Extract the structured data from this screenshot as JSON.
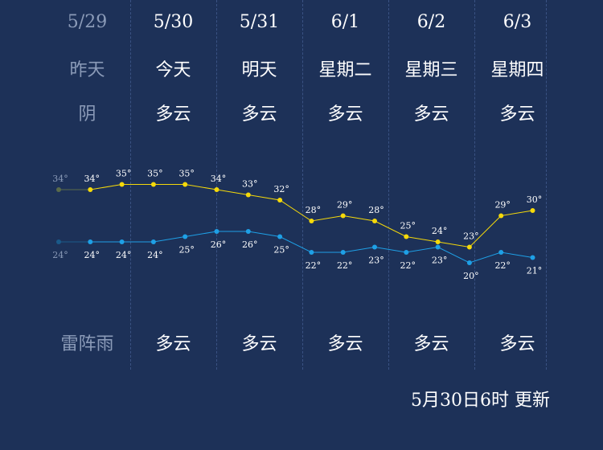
{
  "days": [
    {
      "date": "5/29",
      "weekday": "昨天",
      "day_weather": "阴",
      "night_weather": "雷阵雨",
      "past": true
    },
    {
      "date": "5/30",
      "weekday": "今天",
      "day_weather": "多云",
      "night_weather": "多云",
      "past": false
    },
    {
      "date": "5/31",
      "weekday": "明天",
      "day_weather": "多云",
      "night_weather": "多云",
      "past": false
    },
    {
      "date": "6/1",
      "weekday": "星期二",
      "day_weather": "多云",
      "night_weather": "多云",
      "past": false
    },
    {
      "date": "6/2",
      "weekday": "星期三",
      "day_weather": "多云",
      "night_weather": "多云",
      "past": false
    },
    {
      "date": "6/3",
      "weekday": "星期四",
      "day_weather": "多云",
      "night_weather": "多云",
      "past": false
    }
  ],
  "chart_data": {
    "type": "line",
    "series": [
      {
        "values": [
          34,
          34,
          35,
          35,
          35,
          34,
          33,
          32,
          28,
          29,
          28,
          25,
          24,
          23,
          29,
          30
        ]
      },
      {
        "values": [
          24,
          24,
          24,
          24,
          25,
          26,
          26,
          25,
          22,
          22,
          23,
          22,
          23,
          20,
          22,
          21
        ]
      }
    ],
    "high_color": "#f5d90a",
    "low_color": "#1ea0e6",
    "past_high_color": "#5a6b4a",
    "past_low_color": "#1a5a8a",
    "unit": "°"
  },
  "updated": "5月30日6时 更新"
}
